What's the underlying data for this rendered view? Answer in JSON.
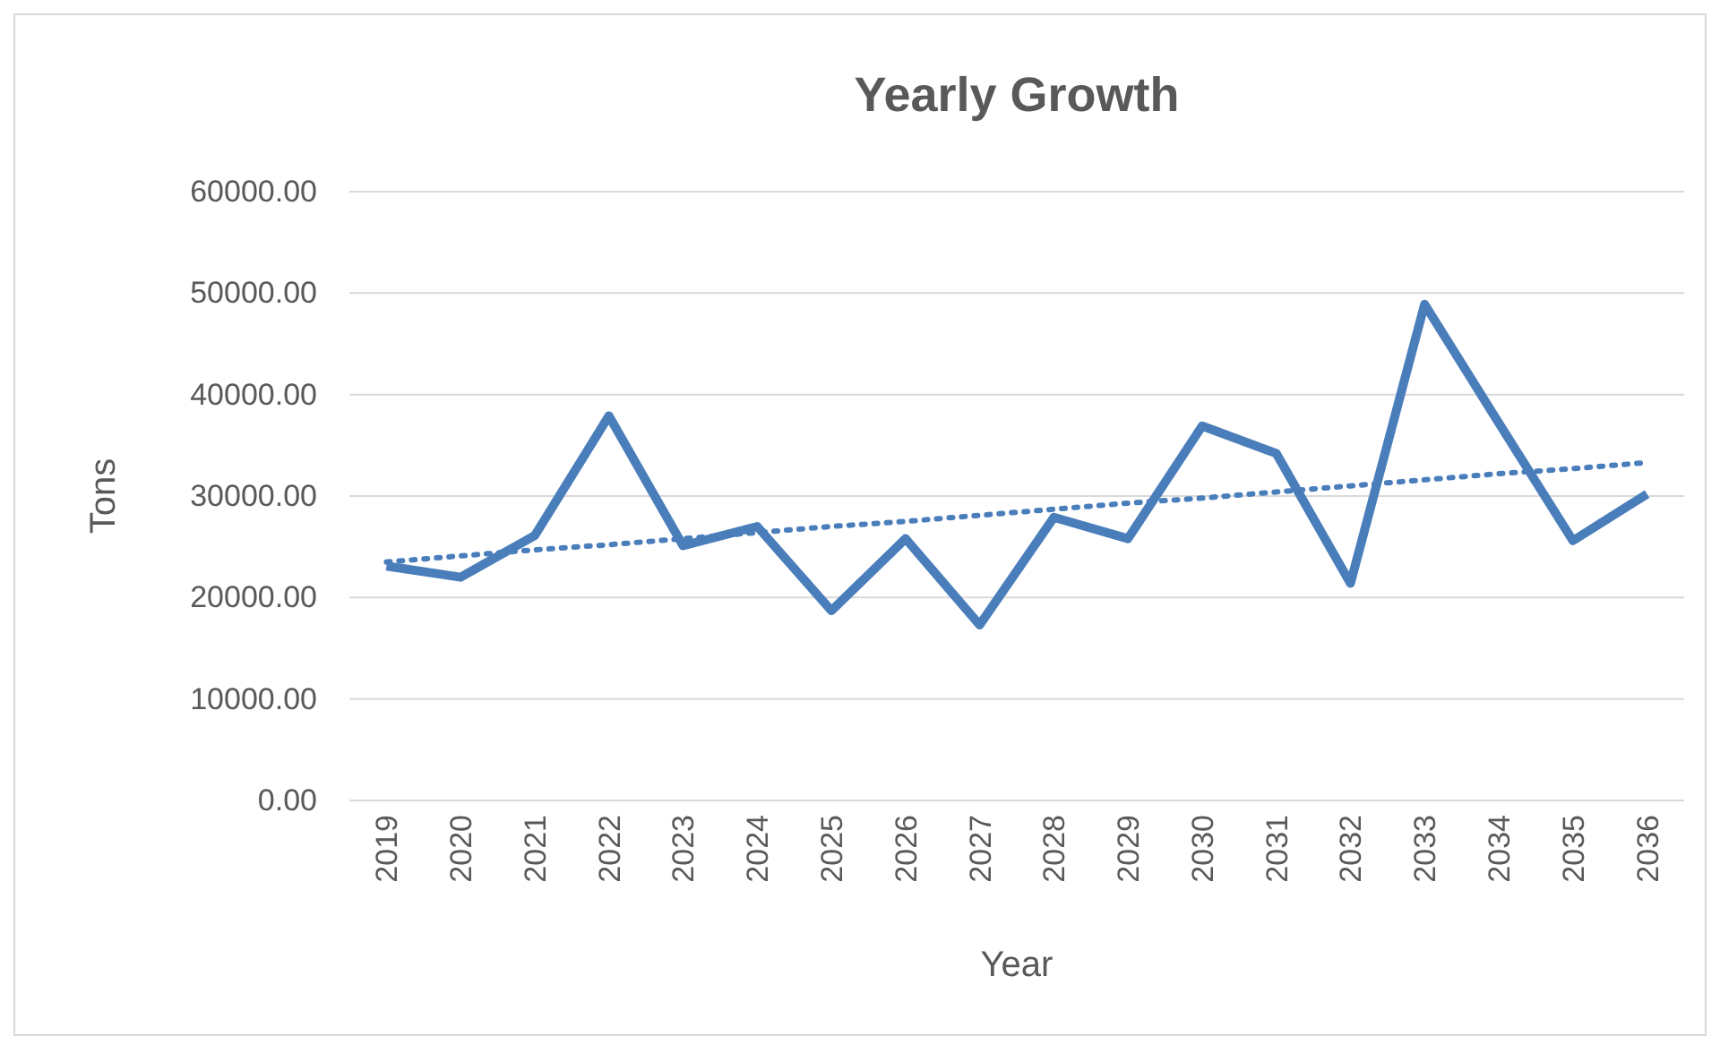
{
  "chart_data": {
    "type": "line",
    "title": "Yearly Growth",
    "xlabel": "Year",
    "ylabel": "Tons",
    "categories": [
      "2019",
      "2020",
      "2021",
      "2022",
      "2023",
      "2024",
      "2025",
      "2026",
      "2027",
      "2028",
      "2029",
      "2030",
      "2031",
      "2032",
      "2033",
      "2034",
      "2035",
      "2036"
    ],
    "series": [
      {
        "color": "#4a7ebb",
        "line_style": "solid",
        "values": [
          23100,
          22000,
          26100,
          37900,
          25100,
          27000,
          18700,
          25800,
          17300,
          27900,
          25800,
          36900,
          34200,
          21400,
          48900,
          37200,
          25600,
          30200
        ]
      },
      {
        "color": "#4a7ebb",
        "line_style": "dotted",
        "values": [
          23500,
          24100,
          24700,
          25200,
          25800,
          26400,
          27000,
          27500,
          28100,
          28700,
          29300,
          29800,
          30400,
          31000,
          31600,
          32200,
          32700,
          33300
        ]
      }
    ],
    "ylim": [
      0,
      60000
    ],
    "yticks": [
      {
        "value": 0,
        "label": "0.00"
      },
      {
        "value": 10000,
        "label": "10000.00"
      },
      {
        "value": 20000,
        "label": "20000.00"
      },
      {
        "value": 30000,
        "label": "30000.00"
      },
      {
        "value": 40000,
        "label": "40000.00"
      },
      {
        "value": 50000,
        "label": "50000.00"
      },
      {
        "value": 60000,
        "label": "60000.00"
      }
    ],
    "grid": "y",
    "marker": "none"
  }
}
